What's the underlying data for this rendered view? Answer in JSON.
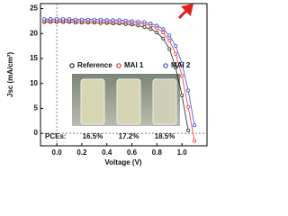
{
  "chart_data": {
    "type": "line",
    "xlabel": "Voltage (V)",
    "ylabel": "Jsc (mA/cm²)",
    "x": [
      -0.1,
      -0.05,
      0,
      0.05,
      0.1,
      0.15,
      0.2,
      0.25,
      0.3,
      0.35,
      0.4,
      0.45,
      0.5,
      0.55,
      0.6,
      0.65,
      0.7,
      0.75,
      0.8,
      0.85,
      0.9,
      0.95,
      1.0,
      1.05,
      1.1,
      1.15
    ],
    "series": [
      {
        "name": "Reference",
        "color": "#222222",
        "values": [
          22.3,
          22.3,
          22.3,
          22.3,
          22.3,
          22.2,
          22.2,
          22.2,
          22.2,
          22.1,
          22.1,
          22.0,
          22.0,
          21.9,
          21.8,
          21.6,
          21.3,
          20.9,
          20.2,
          19.0,
          16.9,
          13.2,
          7.6,
          0.6,
          null,
          null
        ]
      },
      {
        "name": "MAI 1",
        "color": "#e8383d",
        "values": [
          22.6,
          22.6,
          22.6,
          22.6,
          22.6,
          22.6,
          22.5,
          22.5,
          22.5,
          22.5,
          22.4,
          22.4,
          22.3,
          22.3,
          22.2,
          22.1,
          21.9,
          21.6,
          21.1,
          20.2,
          18.6,
          15.9,
          11.5,
          5.3,
          -1.5,
          null
        ]
      },
      {
        "name": "MAI 2",
        "color": "#3a4fd8",
        "values": [
          22.9,
          22.9,
          22.9,
          22.9,
          22.9,
          22.8,
          22.8,
          22.8,
          22.8,
          22.8,
          22.7,
          22.7,
          22.7,
          22.6,
          22.5,
          22.4,
          22.3,
          22.0,
          21.6,
          20.9,
          19.6,
          17.5,
          14.0,
          8.6,
          1.6,
          null
        ]
      }
    ],
    "xlim": [
      -0.13,
      1.2
    ],
    "ylim": [
      -2.5,
      26
    ],
    "xticks": [
      {
        "value": 0,
        "label": "0.0"
      },
      0.2,
      0.4,
      0.6,
      0.8,
      {
        "value": 1,
        "label": "1.0"
      }
    ],
    "yticks": [
      0,
      5,
      10,
      15,
      20,
      25
    ],
    "annotations": [
      "PCEs:",
      "16.5%",
      "17.2%",
      "18.5%"
    ]
  }
}
